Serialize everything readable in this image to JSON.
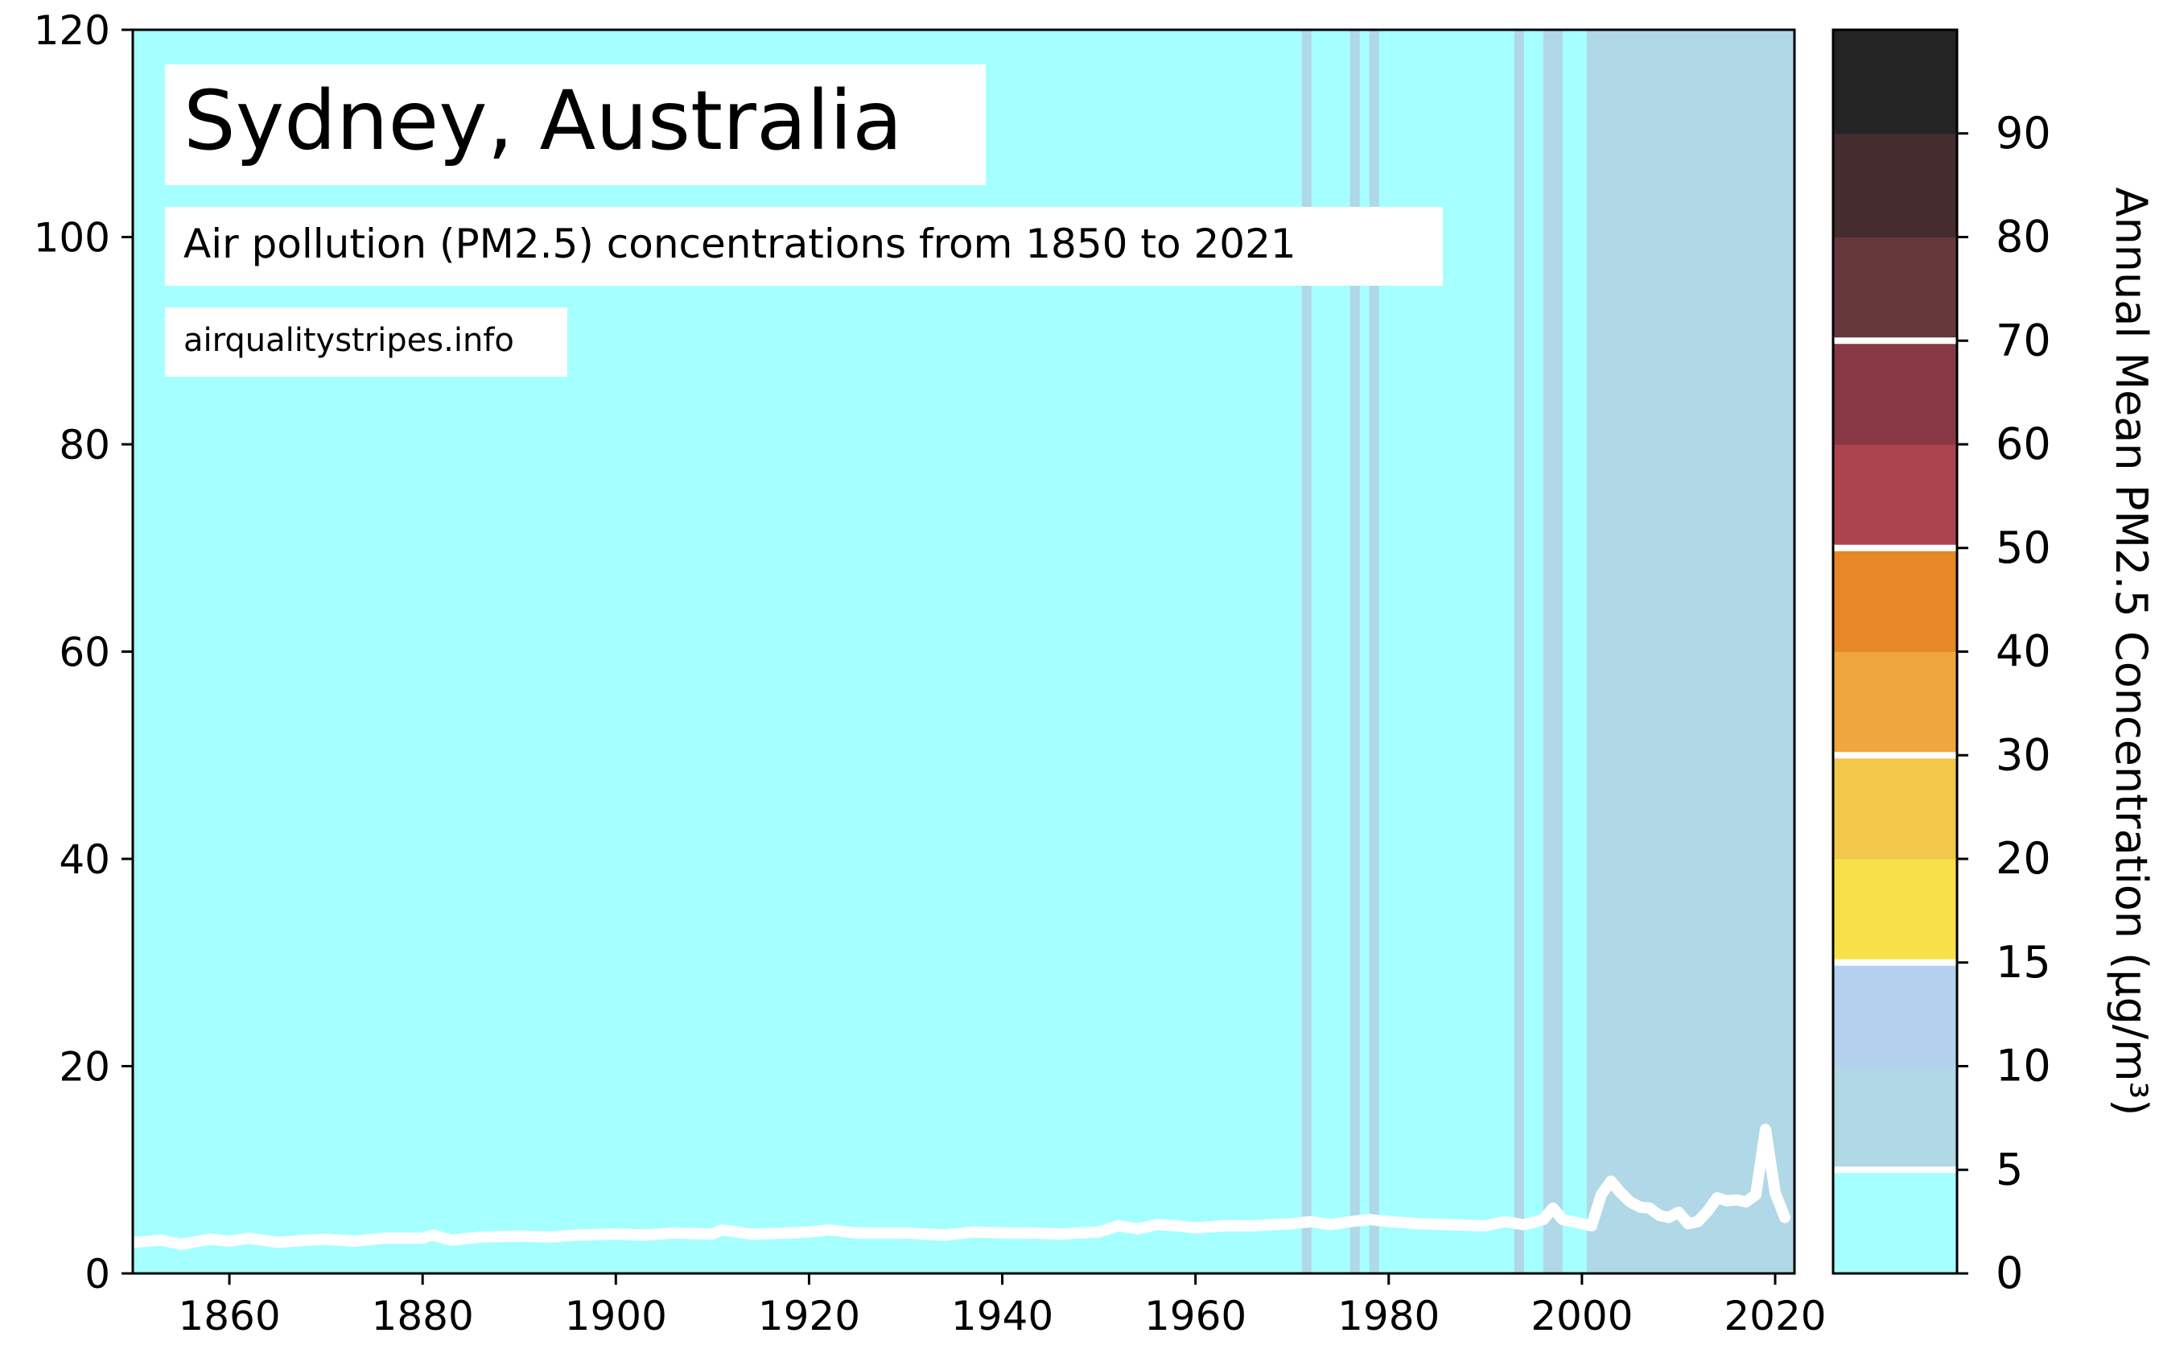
{
  "chart_data": {
    "type": "line",
    "title": "Sydney, Australia",
    "subtitle": "Air pollution (PM2.5) concentrations from 1850 to 2021",
    "source": "airqualitystripes.info",
    "xlim": [
      1850,
      2022
    ],
    "ylim": [
      0,
      120
    ],
    "x_ticks": [
      "1860",
      "1880",
      "1900",
      "1920",
      "1940",
      "1960",
      "1980",
      "2000",
      "2020"
    ],
    "y_ticks": [
      "0",
      "20",
      "40",
      "60",
      "80",
      "100",
      "120"
    ],
    "colorbar": {
      "label": "Annual Mean PM2.5 Concentration (μg/m³)",
      "tick_labels": [
        "0",
        "5",
        "10",
        "15",
        "20",
        "30",
        "40",
        "50",
        "60",
        "70",
        "80",
        "90"
      ],
      "boundaries": [
        0,
        5,
        10,
        15,
        20,
        30,
        40,
        50,
        60,
        70,
        80,
        90,
        100
      ],
      "colors": [
        "#a6ffff",
        "#b0d8e6",
        "#b3d0ee",
        "#f8e04a",
        "#f1c84a",
        "#efa63e",
        "#e68826",
        "#ac4450",
        "#883845",
        "#66383b",
        "#452d2f",
        "#242424"
      ],
      "white_lines_at": [
        5,
        15,
        30,
        50,
        70
      ]
    },
    "background_color": "#a6ffff",
    "stripe_color": "#b0d8e6",
    "stripes": [
      {
        "x0": 1971,
        "x1": 1972
      },
      {
        "x0": 1976,
        "x1": 1977
      },
      {
        "x0": 1978,
        "x1": 1979
      },
      {
        "x0": 1993,
        "x1": 1994
      },
      {
        "x0": 1996,
        "x1": 1998
      },
      {
        "x0": 2000.5,
        "x1": 2022
      }
    ],
    "line_color": "#ffffff",
    "series": [
      {
        "x": [
          1850,
          1853,
          1855,
          1858,
          1860,
          1862,
          1865,
          1868,
          1870,
          1873,
          1876,
          1880,
          1881,
          1883,
          1886,
          1890,
          1893,
          1896,
          1900,
          1903,
          1906,
          1910,
          1911,
          1914,
          1918,
          1920,
          1922,
          1925,
          1928,
          1930,
          1934,
          1937,
          1940,
          1943,
          1946,
          1948,
          1950,
          1952,
          1954,
          1956,
          1958,
          1960,
          1963,
          1966,
          1970,
          1972,
          1974,
          1976,
          1978,
          1980,
          1983,
          1986,
          1990,
          1992,
          1994,
          1996,
          1997,
          1998,
          2000,
          2001,
          2002,
          2003,
          2004,
          2005,
          2006,
          2007,
          2008,
          2009,
          2010,
          2011,
          2012,
          2013,
          2014,
          2015,
          2016,
          2017,
          2018,
          2019,
          2020,
          2021
        ],
        "y": [
          3.0,
          3.2,
          2.8,
          3.3,
          3.1,
          3.4,
          3.0,
          3.2,
          3.3,
          3.1,
          3.4,
          3.4,
          3.7,
          3.2,
          3.5,
          3.6,
          3.5,
          3.7,
          3.8,
          3.7,
          3.9,
          3.8,
          4.2,
          3.8,
          3.9,
          4.0,
          4.2,
          3.9,
          3.9,
          3.9,
          3.7,
          4.0,
          3.9,
          3.9,
          3.8,
          3.9,
          4.0,
          4.6,
          4.3,
          4.7,
          4.6,
          4.4,
          4.6,
          4.6,
          4.8,
          5.0,
          4.7,
          5.0,
          5.2,
          5.0,
          4.8,
          4.7,
          4.6,
          5.0,
          4.7,
          5.2,
          6.3,
          5.2,
          4.8,
          4.6,
          7.6,
          8.9,
          7.8,
          6.9,
          6.4,
          6.3,
          5.6,
          5.4,
          5.9,
          4.8,
          5.0,
          6.0,
          7.3,
          7.0,
          7.1,
          6.9,
          7.6,
          13.9,
          7.8,
          5.4
        ]
      }
    ]
  }
}
